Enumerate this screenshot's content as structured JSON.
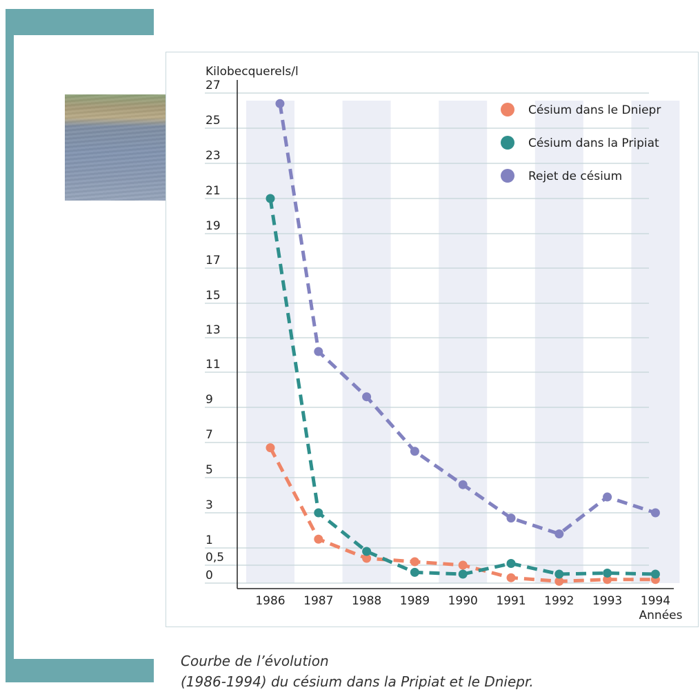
{
  "chart_data": {
    "type": "line",
    "ylabel": "Kilobecquerels/l",
    "xlabel": "Années",
    "categories": [
      "1986",
      "1987",
      "1988",
      "1989",
      "1990",
      "1991",
      "1992",
      "1993",
      "1994"
    ],
    "yticks": [
      {
        "label": "27",
        "value": 27
      },
      {
        "label": "25",
        "value": 25
      },
      {
        "label": "23",
        "value": 23
      },
      {
        "label": "21",
        "value": 21
      },
      {
        "label": "19",
        "value": 19
      },
      {
        "label": "17",
        "value": 17
      },
      {
        "label": "15",
        "value": 15
      },
      {
        "label": "13",
        "value": 13
      },
      {
        "label": "11",
        "value": 11
      },
      {
        "label": "9",
        "value": 9
      },
      {
        "label": "7",
        "value": 7
      },
      {
        "label": "5",
        "value": 5
      },
      {
        "label": "3",
        "value": 3
      },
      {
        "label": "1",
        "value": 1
      },
      {
        "label": "0,5",
        "value": 0.5
      },
      {
        "label": "0",
        "value": 0
      }
    ],
    "series": [
      {
        "name": "Césium dans le Dniepr",
        "color": "#ef8567",
        "points": [
          [
            1986,
            6.7
          ],
          [
            1987,
            1.5
          ],
          [
            1988,
            0.7
          ],
          [
            1989,
            0.6
          ],
          [
            1990,
            0.5
          ],
          [
            1991,
            0.15
          ],
          [
            1992,
            0.05
          ],
          [
            1993,
            0.1
          ],
          [
            1994,
            0.1
          ]
        ]
      },
      {
        "name": "Césium dans la Pripiat",
        "color": "#2f8f8c",
        "points": [
          [
            1986,
            21
          ],
          [
            1987,
            3
          ],
          [
            1988,
            0.9
          ],
          [
            1989,
            0.3
          ],
          [
            1990,
            0.25
          ],
          [
            1991,
            0.55
          ],
          [
            1992,
            0.25
          ],
          [
            1993,
            0.28
          ],
          [
            1994,
            0.25
          ]
        ]
      },
      {
        "name": "Rejet de césium",
        "color": "#8282c0",
        "points": [
          [
            1986.2,
            26.4
          ],
          [
            1987,
            12.2
          ],
          [
            1988,
            9.6
          ],
          [
            1989,
            6.5
          ],
          [
            1990,
            4.6
          ],
          [
            1991,
            2.7
          ],
          [
            1992,
            1.8
          ],
          [
            1993,
            3.9
          ],
          [
            1994,
            3
          ]
        ]
      }
    ],
    "legend_position": "top-right"
  },
  "caption": {
    "line1": "Courbe de l’évolution",
    "line2": "(1986-1994) du césium dans la Pripiat et le Dniepr."
  }
}
